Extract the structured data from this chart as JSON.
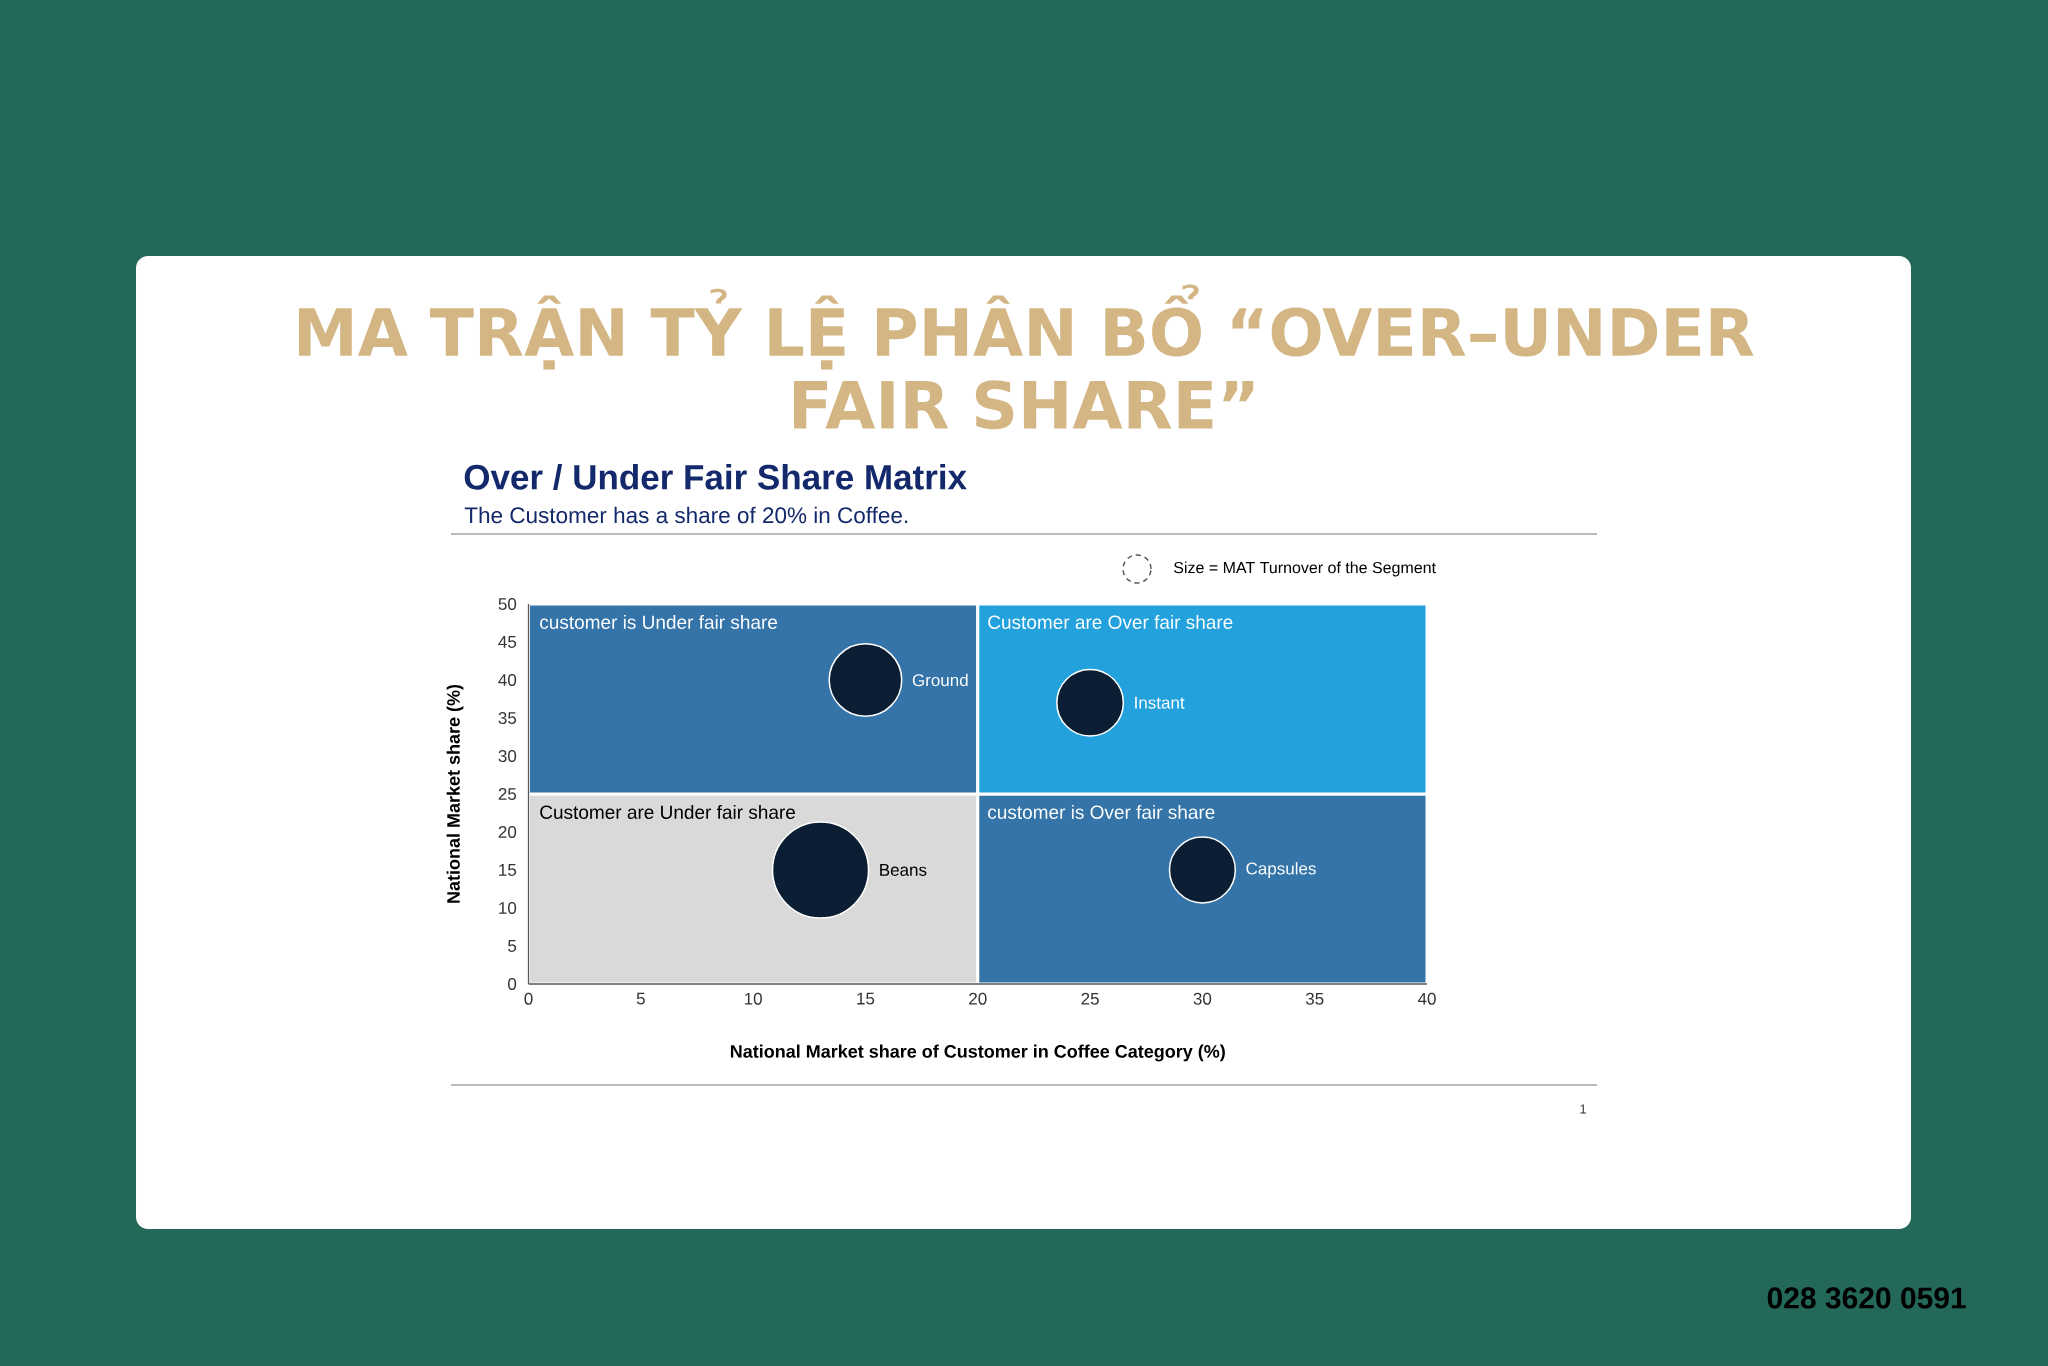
{
  "chart_data": {
    "type": "bubble",
    "title": "MA TRẬN TỶ LỆ PHÂN BỔ “OVER–UNDER FAIR SHARE”",
    "subtitle": "Over / Under Fair Share Matrix",
    "xlabel": "National Market share of Customer in Coffee Category (%)",
    "ylabel": "National Market share (%)",
    "stacked": true,
    "series": [
      {
        "type": "bar",
        "x": [
          10,
          30
        ],
        "values": [
          25,
          25
        ],
        "colors": [
          "#d9d9d9",
          "#3574a8"
        ]
      },
      {
        "type": "bar",
        "x": [
          10,
          30
        ],
        "values": [
          25,
          25
        ],
        "colors": [
          "#3574a8",
          "#23a1dd"
        ]
      },
      {
        "color": "#0b1e33",
        "x": [
          15,
          25,
          13,
          30
        ],
        "values": [
          40,
          37,
          15,
          15
        ],
        "sizes": [
          0.57,
          0.48,
          1,
          0.47
        ]
      }
    ],
    "xlim": [
      0,
      40
    ],
    "xticks": [
      0,
      5,
      10,
      15,
      20,
      25,
      30,
      35,
      40
    ],
    "ylim": [
      0,
      50
    ],
    "yticks": [
      0,
      5,
      10,
      15,
      20,
      25,
      30,
      35,
      40,
      45,
      50
    ],
    "annotations": [
      "The Customer has a share of 20% in Coffee.",
      "Size = MAT Turnover of the Segment",
      "customer is Under fair share",
      "Customer are Over fair share",
      "Customer are Under fair share",
      "customer is Over fair share",
      "Ground",
      "Instant",
      "Beans",
      "Capsules",
      "1",
      "028 3620 0591"
    ]
  }
}
